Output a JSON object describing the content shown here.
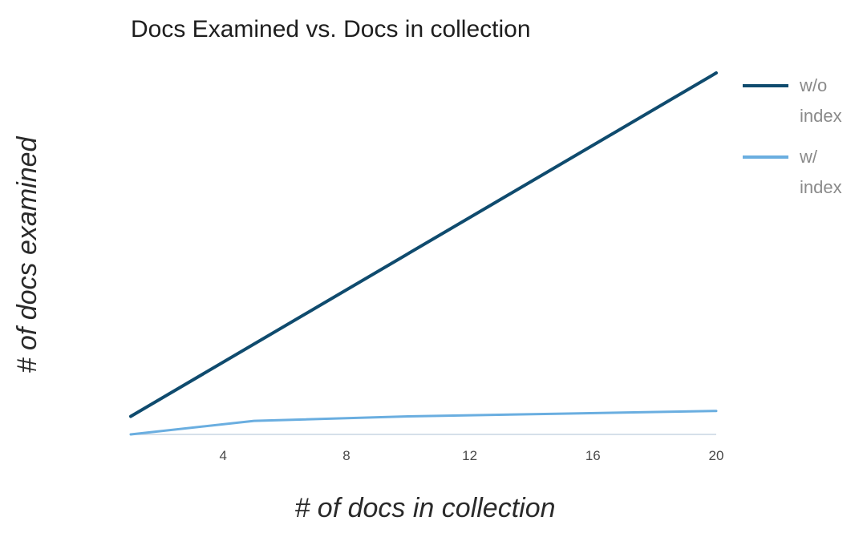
{
  "chart_data": {
    "type": "line",
    "title": "Docs Examined vs. Docs in collection",
    "xlabel": "# of docs in collection",
    "ylabel": "# of docs examined",
    "xlim": [
      1,
      20
    ],
    "ylim": [
      0,
      20
    ],
    "x_ticks": [
      4,
      8,
      12,
      16,
      20
    ],
    "grid": false,
    "legend_position": "right",
    "series": [
      {
        "name": "w/o index",
        "legend_lines": [
          "w/o",
          "index"
        ],
        "color": "#0f4b6e",
        "x": [
          1,
          20
        ],
        "y": [
          1,
          20
        ]
      },
      {
        "name": "w/ index",
        "legend_lines": [
          "w/",
          "index"
        ],
        "color": "#6aaee0",
        "x": [
          1,
          5,
          10,
          15,
          20
        ],
        "y": [
          0,
          0.75,
          1.0,
          1.15,
          1.3
        ]
      }
    ]
  }
}
